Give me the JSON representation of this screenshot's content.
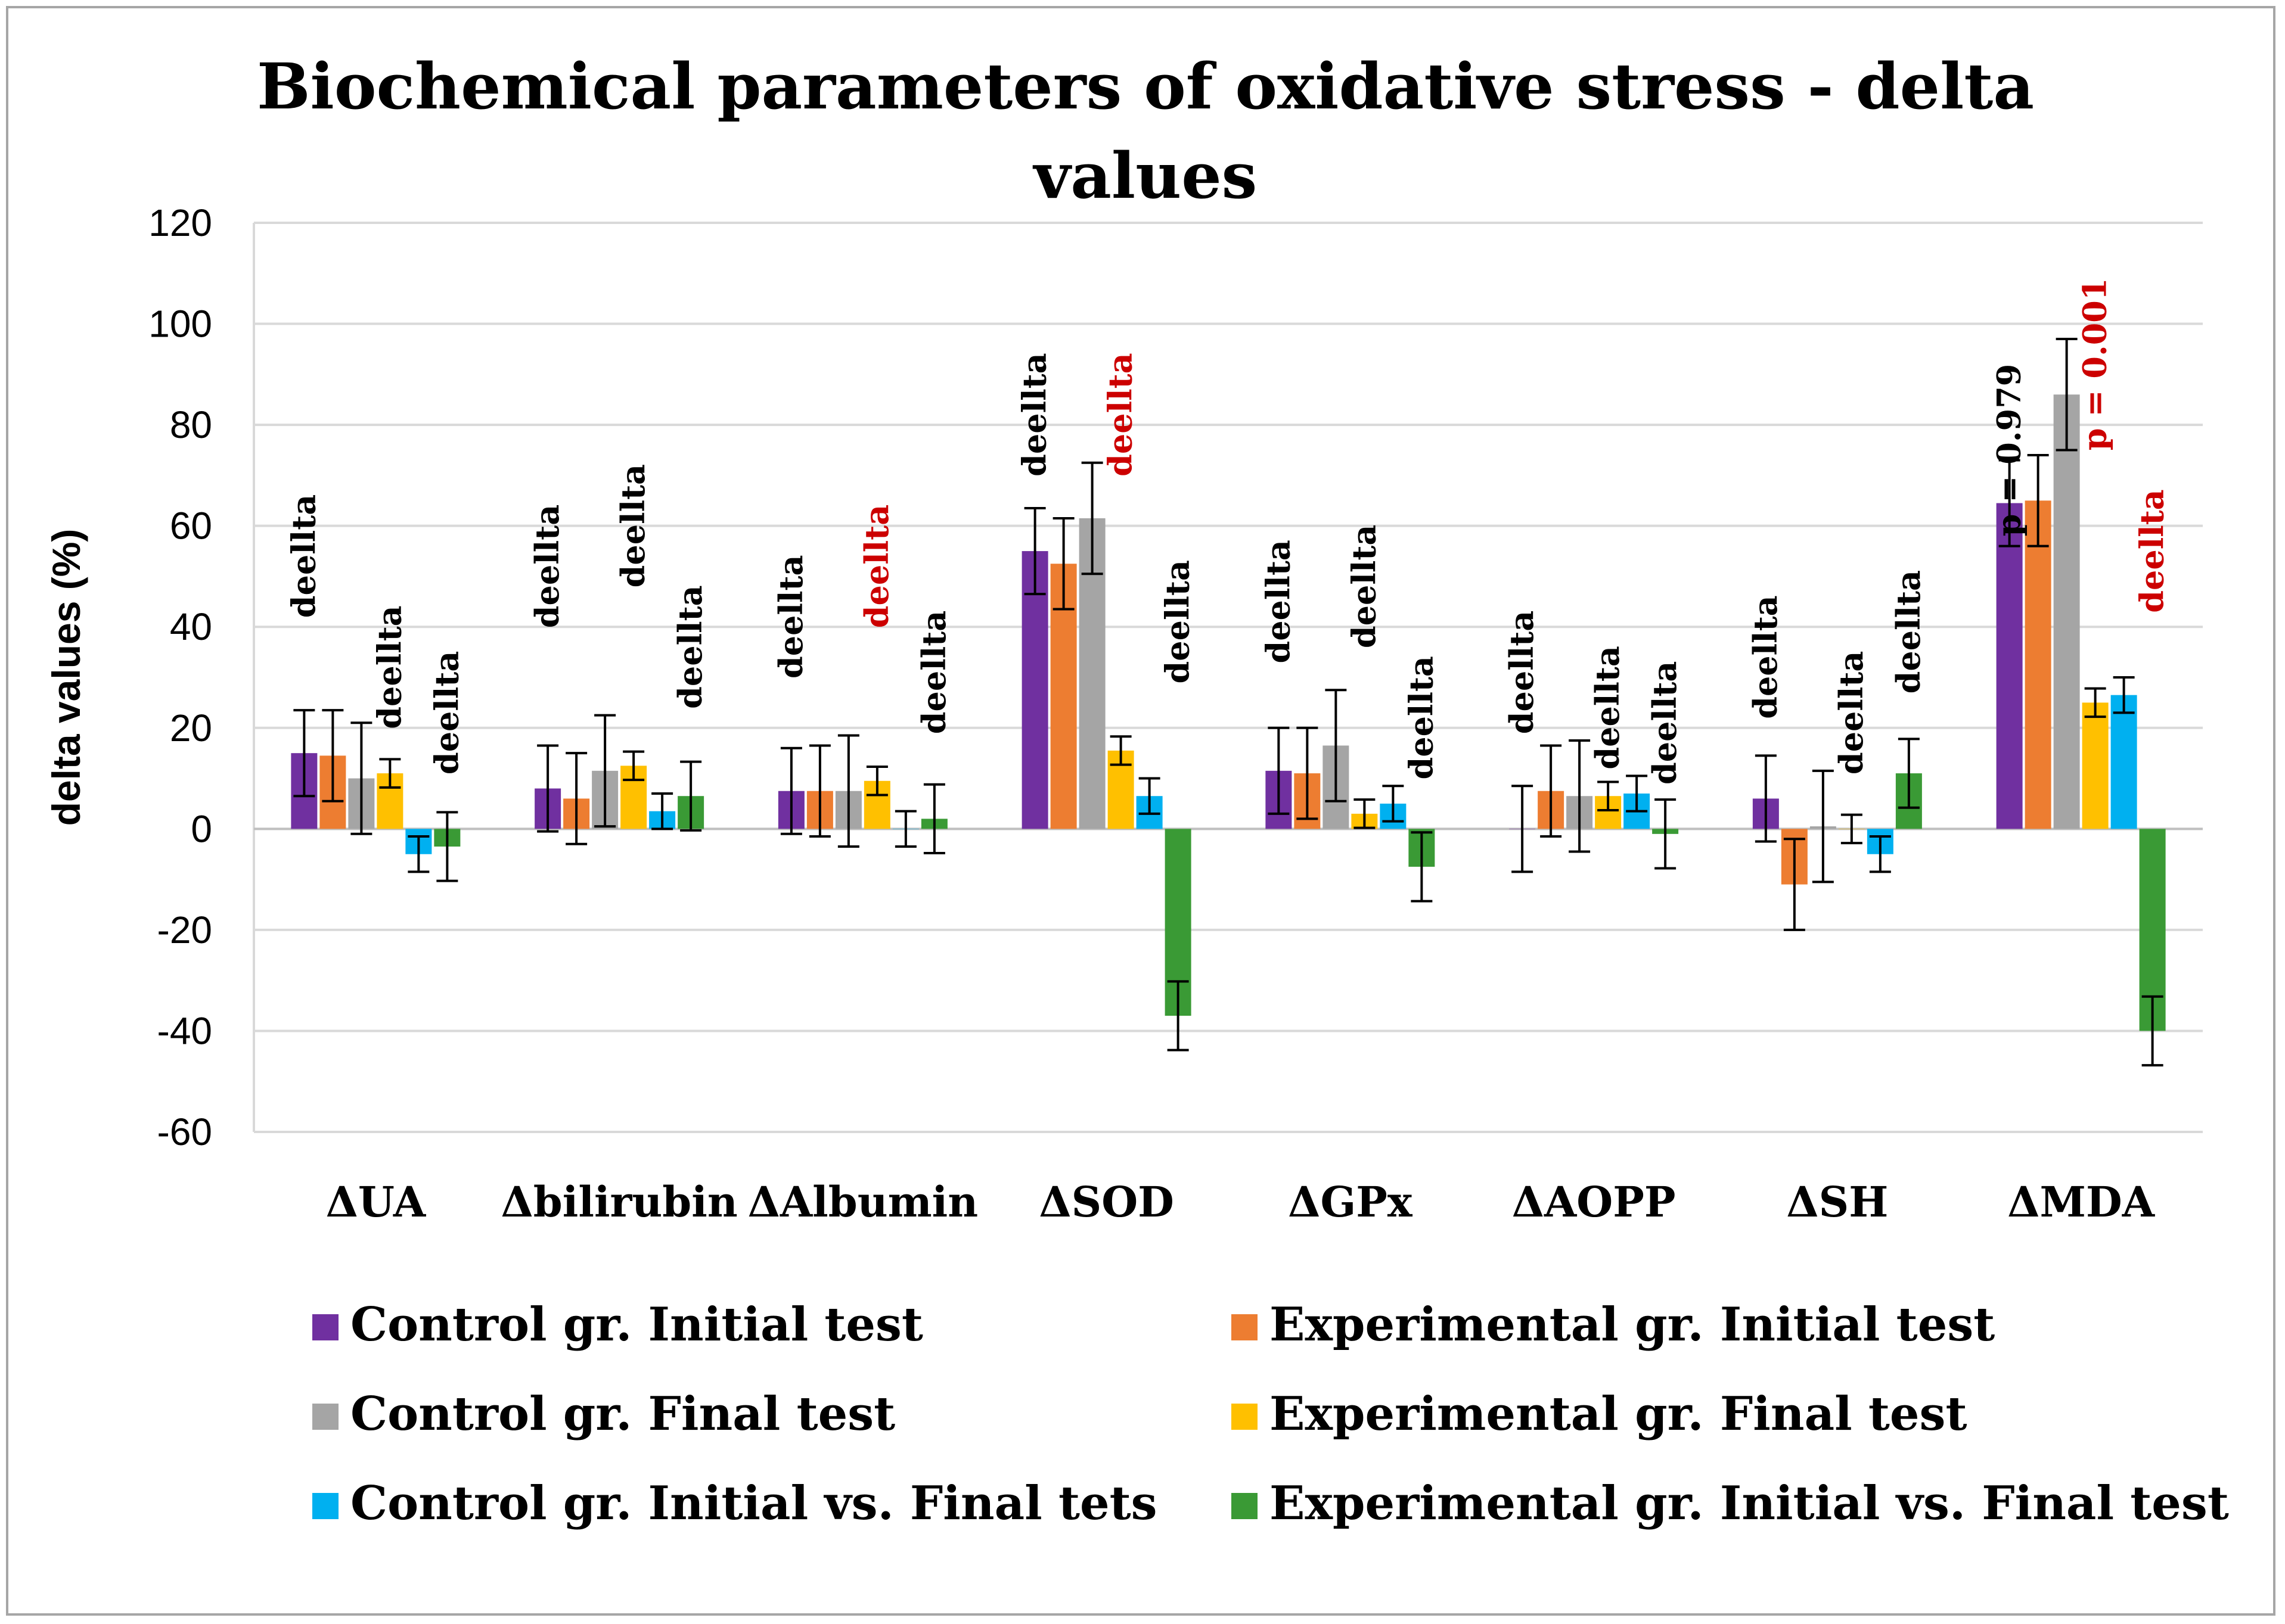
{
  "chart_data": {
    "type": "bar",
    "title": "Biochemical parameters of oxidative stress - delta values",
    "title_lines": [
      "Biochemical parameters of oxidative stress - delta",
      "values"
    ],
    "xlabel": "",
    "ylabel": "delta values (%)",
    "ylim": [
      -60,
      120
    ],
    "yticks": [
      -60,
      -40,
      -20,
      0,
      20,
      40,
      60,
      80,
      100,
      120
    ],
    "grid": true,
    "legend_position": "bottom",
    "categories": [
      "ΔUA",
      "Δbilirubin",
      "ΔAlbumin",
      "ΔSOD",
      "ΔGPx",
      "ΔAOPP",
      "ΔSH",
      "ΔMDA"
    ],
    "series": [
      {
        "name": "Control gr. Initial test",
        "color": "#7030a0",
        "values": [
          15,
          8,
          7.5,
          55,
          11.5,
          0,
          6,
          64.5
        ],
        "errors": [
          8.5,
          8.5,
          8.5,
          8.5,
          8.5,
          8.5,
          8.5,
          8.5
        ]
      },
      {
        "name": "Experimental gr. Initial test",
        "color": "#ed7d31",
        "values": [
          14.5,
          6,
          7.5,
          52.5,
          11,
          7.5,
          -11,
          65
        ],
        "errors": [
          9,
          9,
          9,
          9,
          9,
          9,
          9,
          9
        ]
      },
      {
        "name": "Control gr. Final test",
        "color": "#a5a5a5",
        "values": [
          10,
          11.5,
          7.5,
          61.5,
          16.5,
          6.5,
          0.5,
          86
        ],
        "errors": [
          11,
          11,
          11,
          11,
          11,
          11,
          11,
          11
        ]
      },
      {
        "name": "Experimental gr. Final test",
        "color": "#ffc000",
        "values": [
          11,
          12.5,
          9.5,
          15.5,
          3,
          6.5,
          0,
          25
        ],
        "errors": [
          2.8,
          2.8,
          2.8,
          2.8,
          2.8,
          2.8,
          2.8,
          2.8
        ]
      },
      {
        "name": "Control gr. Initial vs. Final tets",
        "color": "#00b0f0",
        "values": [
          -5,
          3.5,
          0,
          6.5,
          5,
          7,
          -5,
          26.5
        ],
        "errors": [
          3.5,
          3.5,
          3.5,
          3.5,
          3.5,
          3.5,
          3.5,
          3.5
        ]
      },
      {
        "name": "Experimental gr. Initial vs. Final test",
        "color": "#3a9a35",
        "values": [
          -3.5,
          6.5,
          2,
          -37,
          -7.5,
          -1,
          11,
          -40
        ],
        "errors": [
          6.8,
          6.8,
          6.8,
          6.8,
          6.8,
          6.8,
          6.8,
          6.8
        ]
      }
    ],
    "annotations": [
      {
        "text": "deellta",
        "category": 0,
        "series": 0,
        "y": 54,
        "color": "#000000"
      },
      {
        "text": "deellta",
        "category": 0,
        "series": 3,
        "y": 32,
        "color": "#000000"
      },
      {
        "text": "deellta",
        "category": 0,
        "series": 5,
        "y": 23,
        "color": "#000000"
      },
      {
        "text": "deellta",
        "category": 1,
        "series": 0,
        "y": 52,
        "color": "#000000"
      },
      {
        "text": "deellta",
        "category": 1,
        "series": 3,
        "y": 60,
        "color": "#000000"
      },
      {
        "text": "deellta",
        "category": 1,
        "series": 5,
        "y": 36,
        "color": "#000000"
      },
      {
        "text": "deellta",
        "category": 2,
        "series": 0,
        "y": 42,
        "color": "#000000"
      },
      {
        "text": "deellta",
        "category": 2,
        "series": 3,
        "y": 52,
        "color": "#cc0000"
      },
      {
        "text": "deellta",
        "category": 2,
        "series": 5,
        "y": 31,
        "color": "#000000"
      },
      {
        "text": "deellta",
        "category": 3,
        "series": 0,
        "y": 82,
        "color": "#000000"
      },
      {
        "text": "deellta",
        "category": 3,
        "series": 3,
        "y": 82,
        "color": "#cc0000"
      },
      {
        "text": "deellta",
        "category": 3,
        "series": 5,
        "y": 41,
        "color": "#000000"
      },
      {
        "text": "deellta",
        "category": 4,
        "series": 0,
        "y": 45,
        "color": "#000000"
      },
      {
        "text": "deellta",
        "category": 4,
        "series": 3,
        "y": 48,
        "color": "#000000"
      },
      {
        "text": "deellta",
        "category": 4,
        "series": 5,
        "y": 22,
        "color": "#000000"
      },
      {
        "text": "deellta",
        "category": 5,
        "series": 0,
        "y": 31,
        "color": "#000000"
      },
      {
        "text": "deellta",
        "category": 5,
        "series": 3,
        "y": 24,
        "color": "#000000"
      },
      {
        "text": "deellta",
        "category": 5,
        "series": 5,
        "y": 21,
        "color": "#000000"
      },
      {
        "text": "deellta",
        "category": 6,
        "series": 0,
        "y": 34,
        "color": "#000000"
      },
      {
        "text": "deellta",
        "category": 6,
        "series": 3,
        "y": 23,
        "color": "#000000"
      },
      {
        "text": "deellta",
        "category": 6,
        "series": 5,
        "y": 39,
        "color": "#000000"
      },
      {
        "text": "p = 0.979",
        "category": 7,
        "series": 0,
        "y": 75,
        "color": "#000000"
      },
      {
        "text": "p = 0.001",
        "category": 7,
        "series": 3,
        "y": 92,
        "color": "#cc0000"
      },
      {
        "text": "deellta",
        "category": 7,
        "series": 5,
        "y": 55,
        "color": "#cc0000"
      }
    ]
  }
}
